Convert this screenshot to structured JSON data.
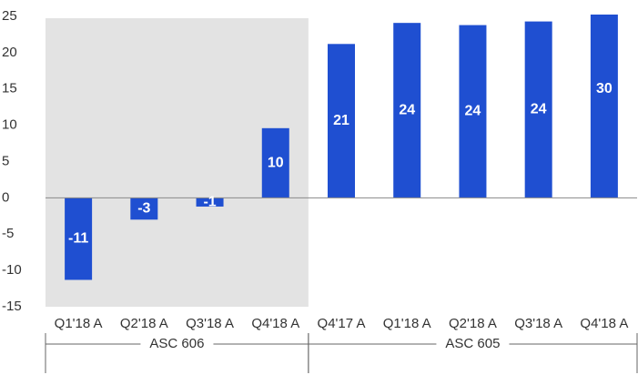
{
  "chart_data": {
    "type": "bar",
    "categories": [
      "Q1'18 A",
      "Q2'18 A",
      "Q3'18 A",
      "Q4'18 A",
      "Q4'17 A",
      "Q1'18 A",
      "Q2'18 A",
      "Q3'18 A",
      "Q4'18 A"
    ],
    "values": [
      -11.3,
      -3.0,
      -1.2,
      9.6,
      21.2,
      24.1,
      23.8,
      24.3,
      30
    ],
    "value_labels": [
      "-11",
      "-3",
      "-1",
      "10",
      "21",
      "24",
      "24",
      "24",
      "30"
    ],
    "color": "#1f4fd1",
    "ylim": [
      -15,
      25
    ],
    "yticks": [
      -15,
      -10,
      -5,
      0,
      5,
      10,
      15,
      20,
      25
    ],
    "groups": [
      {
        "label": "ASC 606",
        "start": 0,
        "end": 3,
        "shaded": true
      },
      {
        "label": "ASC 605",
        "start": 4,
        "end": 8,
        "shaded": false
      }
    ]
  }
}
